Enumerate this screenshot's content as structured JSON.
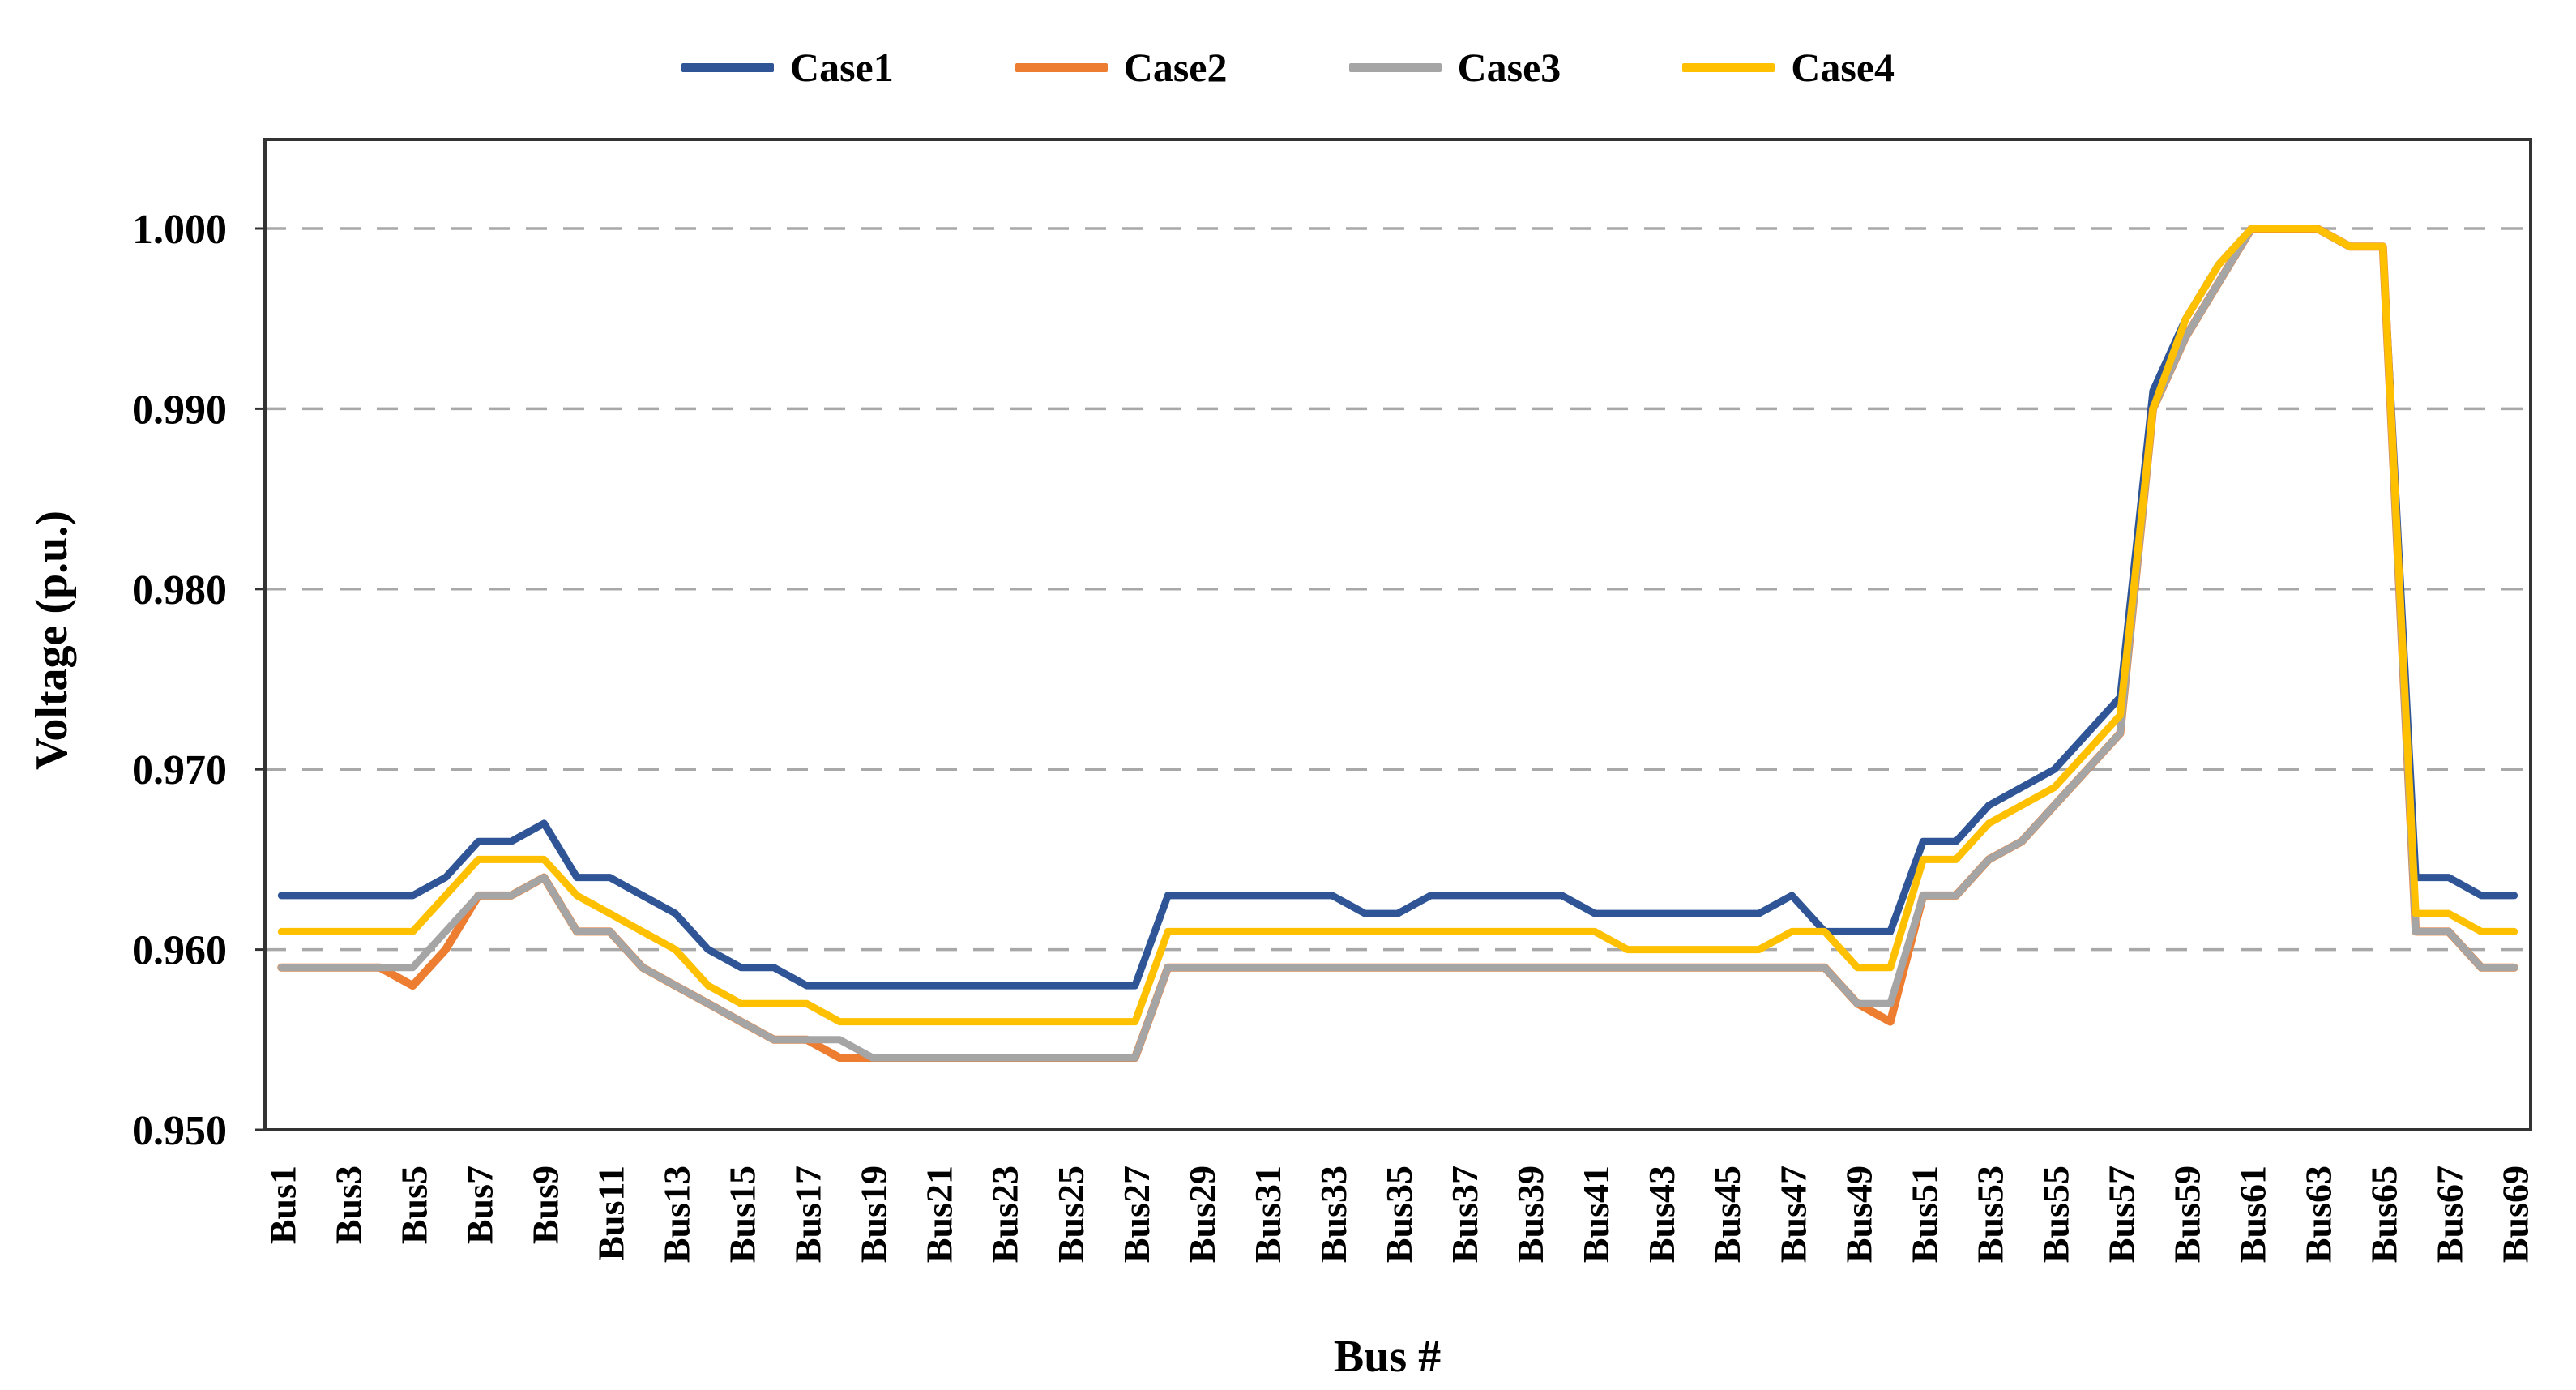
{
  "legend": {
    "items": [
      {
        "label": "Case1",
        "color": "#2F5597"
      },
      {
        "label": "Case2",
        "color": "#ED7D31"
      },
      {
        "label": "Case3",
        "color": "#A5A5A5"
      },
      {
        "label": "Case4",
        "color": "#FFC000"
      }
    ]
  },
  "y_axis": {
    "title": "Voltage (p.u.)",
    "tick_labels": [
      "1.000",
      "0.990",
      "0.980",
      "0.970",
      "0.960",
      "0.950"
    ]
  },
  "x_axis": {
    "title": "Bus #",
    "tick_labels": [
      "Bus1",
      "Bus3",
      "Bus5",
      "Bus7",
      "Bus9",
      "Bus11",
      "Bus13",
      "Bus15",
      "Bus17",
      "Bus19",
      "Bus21",
      "Bus23",
      "Bus25",
      "Bus27",
      "Bus29",
      "Bus31",
      "Bus33",
      "Bus35",
      "Bus37",
      "Bus39",
      "Bus41",
      "Bus43",
      "Bus45",
      "Bus47",
      "Bus49",
      "Bus51",
      "Bus53",
      "Bus55",
      "Bus57",
      "Bus59",
      "Bus61",
      "Bus63",
      "Bus65",
      "Bus67",
      "Bus69"
    ]
  },
  "style": {
    "gridline_color": "#A8A8A8",
    "axis_color": "#333333",
    "text_color": "#000000"
  },
  "chart_data": {
    "type": "line",
    "title": "",
    "xlabel": "Bus #",
    "ylabel": "Voltage (p.u.)",
    "ylim": [
      0.95,
      1.0
    ],
    "ytick_step": 0.01,
    "grid": "horizontal-dashed",
    "legend_position": "top",
    "x": [
      1,
      2,
      3,
      4,
      5,
      6,
      7,
      8,
      9,
      10,
      11,
      12,
      13,
      14,
      15,
      16,
      17,
      18,
      19,
      20,
      21,
      22,
      23,
      24,
      25,
      26,
      27,
      28,
      29,
      30,
      31,
      32,
      33,
      34,
      35,
      36,
      37,
      38,
      39,
      40,
      41,
      42,
      43,
      44,
      45,
      46,
      47,
      48,
      49,
      50,
      51,
      52,
      53,
      54,
      55,
      56,
      57,
      58,
      59,
      60,
      61,
      62,
      63,
      64,
      65,
      66,
      67,
      68,
      69
    ],
    "x_label_format": "Bus{n}",
    "series": [
      {
        "name": "Case1",
        "color": "#2F5597",
        "values": [
          0.963,
          0.963,
          0.963,
          0.963,
          0.963,
          0.964,
          0.966,
          0.966,
          0.967,
          0.964,
          0.964,
          0.963,
          0.962,
          0.96,
          0.959,
          0.959,
          0.958,
          0.958,
          0.958,
          0.958,
          0.958,
          0.958,
          0.958,
          0.958,
          0.958,
          0.958,
          0.958,
          0.963,
          0.963,
          0.963,
          0.963,
          0.963,
          0.963,
          0.962,
          0.962,
          0.963,
          0.963,
          0.963,
          0.963,
          0.963,
          0.962,
          0.962,
          0.962,
          0.962,
          0.962,
          0.962,
          0.963,
          0.961,
          0.961,
          0.961,
          0.966,
          0.966,
          0.968,
          0.969,
          0.97,
          0.972,
          0.974,
          0.991,
          0.995,
          0.998,
          1.0,
          1.0,
          1.0,
          0.999,
          0.999,
          0.964,
          0.964,
          0.963,
          0.963
        ]
      },
      {
        "name": "Case2",
        "color": "#ED7D31",
        "values": [
          0.959,
          0.959,
          0.959,
          0.959,
          0.958,
          0.96,
          0.963,
          0.963,
          0.964,
          0.961,
          0.961,
          0.959,
          0.958,
          0.957,
          0.956,
          0.955,
          0.955,
          0.954,
          0.954,
          0.954,
          0.954,
          0.954,
          0.954,
          0.954,
          0.954,
          0.954,
          0.954,
          0.959,
          0.959,
          0.959,
          0.959,
          0.959,
          0.959,
          0.959,
          0.959,
          0.959,
          0.959,
          0.959,
          0.959,
          0.959,
          0.959,
          0.959,
          0.959,
          0.959,
          0.959,
          0.959,
          0.959,
          0.959,
          0.957,
          0.956,
          0.963,
          0.963,
          0.965,
          0.966,
          0.968,
          0.97,
          0.972,
          0.99,
          0.994,
          0.997,
          1.0,
          1.0,
          1.0,
          0.999,
          0.999,
          0.961,
          0.961,
          0.959,
          0.959
        ]
      },
      {
        "name": "Case3",
        "color": "#A5A5A5",
        "values": [
          0.959,
          0.959,
          0.959,
          0.959,
          0.959,
          0.961,
          0.963,
          0.963,
          0.964,
          0.961,
          0.961,
          0.959,
          0.958,
          0.957,
          0.956,
          0.955,
          0.955,
          0.955,
          0.954,
          0.954,
          0.954,
          0.954,
          0.954,
          0.954,
          0.954,
          0.954,
          0.954,
          0.959,
          0.959,
          0.959,
          0.959,
          0.959,
          0.959,
          0.959,
          0.959,
          0.959,
          0.959,
          0.959,
          0.959,
          0.959,
          0.959,
          0.959,
          0.959,
          0.959,
          0.959,
          0.959,
          0.959,
          0.959,
          0.957,
          0.957,
          0.963,
          0.963,
          0.965,
          0.966,
          0.968,
          0.97,
          0.972,
          0.99,
          0.994,
          0.997,
          1.0,
          1.0,
          1.0,
          0.999,
          0.999,
          0.961,
          0.961,
          0.959,
          0.959
        ]
      },
      {
        "name": "Case4",
        "color": "#FFC000",
        "values": [
          0.961,
          0.961,
          0.961,
          0.961,
          0.961,
          0.963,
          0.965,
          0.965,
          0.965,
          0.963,
          0.962,
          0.961,
          0.96,
          0.958,
          0.957,
          0.957,
          0.957,
          0.956,
          0.956,
          0.956,
          0.956,
          0.956,
          0.956,
          0.956,
          0.956,
          0.956,
          0.956,
          0.961,
          0.961,
          0.961,
          0.961,
          0.961,
          0.961,
          0.961,
          0.961,
          0.961,
          0.961,
          0.961,
          0.961,
          0.961,
          0.961,
          0.96,
          0.96,
          0.96,
          0.96,
          0.96,
          0.961,
          0.961,
          0.959,
          0.959,
          0.965,
          0.965,
          0.967,
          0.968,
          0.969,
          0.971,
          0.973,
          0.99,
          0.995,
          0.998,
          1.0,
          1.0,
          1.0,
          0.999,
          0.999,
          0.962,
          0.962,
          0.961,
          0.961
        ]
      }
    ]
  }
}
